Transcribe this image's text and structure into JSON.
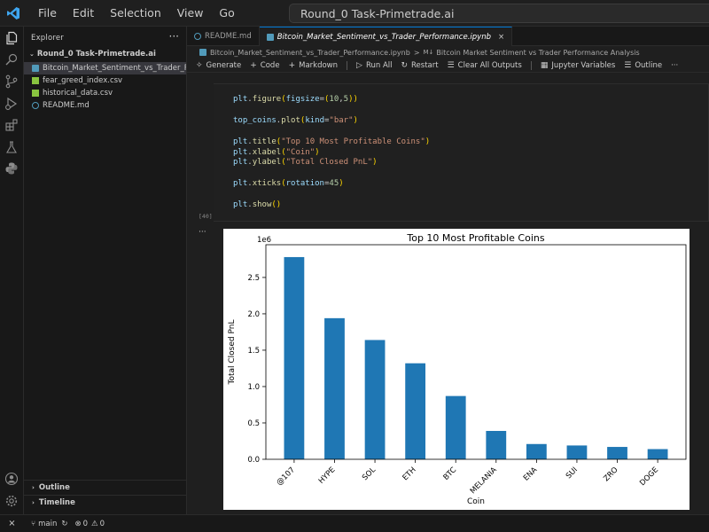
{
  "titlebar": {
    "menu": [
      "File",
      "Edit",
      "Selection",
      "View",
      "Go"
    ],
    "command_center": "Round_0 Task-Primetrade.ai",
    "back_arrow": "←",
    "forward_arrow": "→"
  },
  "sidebar": {
    "title": "Explorer",
    "more": "···",
    "folder": "Round_0 Task-Primetrade.ai",
    "files": [
      {
        "name": "Bitcoin_Market_Sentiment_vs_Trader_Perfo...",
        "icon": "notebook-icon",
        "color": "#519aba"
      },
      {
        "name": "fear_greed_index.csv",
        "icon": "csv-icon",
        "color": "#89c440"
      },
      {
        "name": "historical_data.csv",
        "icon": "csv-icon",
        "color": "#89c440"
      },
      {
        "name": "README.md",
        "icon": "info-icon",
        "color": "#519aba"
      }
    ],
    "outline_label": "Outline",
    "timeline_label": "Timeline"
  },
  "tabs": [
    {
      "label": "README.md",
      "active": false
    },
    {
      "label": "Bitcoin_Market_Sentiment_vs_Trader_Performance.ipynb",
      "active": true,
      "close": "×"
    }
  ],
  "breadcrumb": {
    "file": "Bitcoin_Market_Sentiment_vs_Trader_Performance.ipynb",
    "sep": ">",
    "section": "Bitcoin Market Sentiment vs Trader Performance Analysis"
  },
  "toolbar": {
    "generate": "Generate",
    "code": "Code",
    "markdown": "Markdown",
    "run_all": "Run All",
    "restart": "Restart",
    "clear_outputs": "Clear All Outputs",
    "jupyter_variables": "Jupyter Variables",
    "outline": "Outline",
    "more": "···"
  },
  "cell": {
    "exec_count": "[40]",
    "output_more": "···",
    "lines": [
      "plt.figure(figsize=(10,5))",
      "",
      "top_coins.plot(kind=\"bar\")",
      "",
      "plt.title(\"Top 10 Most Profitable Coins\")",
      "plt.xlabel(\"Coin\")",
      "plt.ylabel(\"Total Closed PnL\")",
      "",
      "plt.xticks(rotation=45)",
      "",
      "plt.show()"
    ]
  },
  "chart_data": {
    "type": "bar",
    "title": "Top 10 Most Profitable Coins",
    "xlabel": "Coin",
    "ylabel": "Total Closed PnL",
    "y_offset_label": "1e6",
    "categories": [
      "@107",
      "HYPE",
      "SOL",
      "ETH",
      "BTC",
      "MELANIA",
      "ENA",
      "SUI",
      "ZRO",
      "DOGE"
    ],
    "values": [
      2.78,
      1.94,
      1.64,
      1.32,
      0.87,
      0.39,
      0.21,
      0.19,
      0.17,
      0.14
    ],
    "value_scale": 1000000,
    "ylim": [
      0,
      2.95
    ],
    "yticks": [
      0.0,
      0.5,
      1.0,
      1.5,
      2.0,
      2.5
    ],
    "ytick_labels": [
      "0.0",
      "0.5",
      "1.0",
      "1.5",
      "2.0",
      "2.5"
    ],
    "bar_color": "#1f77b4",
    "grid": false,
    "x_tick_rotation": 45
  },
  "statusbar": {
    "remote": "⨯",
    "branch": "main",
    "errors": "0",
    "warnings": "0"
  }
}
